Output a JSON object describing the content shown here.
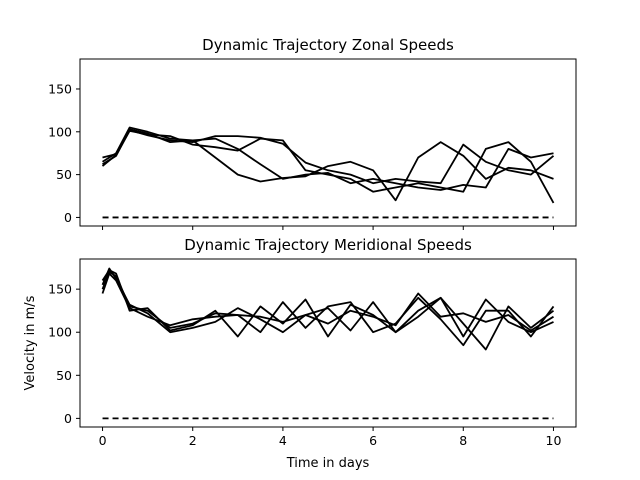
{
  "chart_data": [
    {
      "type": "line",
      "title": "Dynamic Trajectory Zonal Speeds",
      "xlabel": "",
      "ylabel": "",
      "xlim": [
        -0.5,
        10.5
      ],
      "ylim": [
        -10,
        185
      ],
      "yticks": [
        0,
        50,
        100,
        150
      ],
      "xticks": [
        0,
        2,
        4,
        6,
        8,
        10
      ],
      "show_xtick_labels": false,
      "grid": false,
      "series": [
        {
          "x": [
            0,
            0.3,
            0.6,
            1,
            1.5,
            2,
            2.5,
            3,
            3.5,
            4,
            4.5,
            5,
            5.5,
            6,
            6.5,
            7,
            7.5,
            8,
            8.5,
            9,
            9.5,
            10
          ],
          "values": [
            62,
            72,
            102,
            96,
            90,
            88,
            95,
            95,
            93,
            86,
            64,
            55,
            50,
            40,
            45,
            42,
            40,
            85,
            65,
            55,
            50,
            72
          ]
        },
        {
          "x": [
            0,
            0.3,
            0.6,
            1,
            1.5,
            2,
            2.5,
            3,
            3.5,
            4,
            4.5,
            5,
            5.5,
            6,
            6.5,
            7,
            7.5,
            8,
            8.5,
            9,
            9.5,
            10
          ],
          "values": [
            65,
            75,
            105,
            100,
            92,
            90,
            92,
            80,
            62,
            45,
            50,
            52,
            40,
            45,
            40,
            35,
            32,
            38,
            35,
            80,
            70,
            75
          ]
        },
        {
          "x": [
            0,
            0.3,
            0.6,
            1,
            1.5,
            2,
            2.5,
            3,
            3.5,
            4,
            4.5,
            5,
            5.5,
            6,
            6.5,
            7,
            7.5,
            8,
            8.5,
            9,
            9.5,
            10
          ],
          "values": [
            70,
            74,
            103,
            98,
            88,
            90,
            70,
            50,
            42,
            46,
            48,
            60,
            65,
            55,
            20,
            70,
            88,
            72,
            45,
            58,
            55,
            45
          ]
        },
        {
          "x": [
            0,
            0.3,
            0.6,
            1,
            1.5,
            2,
            2.5,
            3,
            3.5,
            4,
            4.5,
            5,
            5.5,
            6,
            6.5,
            7,
            7.5,
            8,
            8.5,
            9,
            9.5,
            10
          ],
          "values": [
            60,
            73,
            101,
            97,
            95,
            85,
            82,
            78,
            92,
            90,
            55,
            50,
            45,
            30,
            35,
            40,
            35,
            30,
            80,
            88,
            65,
            17
          ]
        }
      ],
      "baseline": 0
    },
    {
      "type": "line",
      "title": "Dynamic Trajectory Meridional Speeds",
      "xlabel": "Time in days",
      "ylabel": "Velocity in m/s",
      "xlim": [
        -0.5,
        10.5
      ],
      "ylim": [
        -10,
        185
      ],
      "yticks": [
        0,
        50,
        100,
        150
      ],
      "xticks": [
        0,
        2,
        4,
        6,
        8,
        10
      ],
      "show_xtick_labels": true,
      "grid": false,
      "series": [
        {
          "x": [
            0,
            0.15,
            0.3,
            0.6,
            1,
            1.5,
            2,
            2.5,
            3,
            3.5,
            4,
            4.5,
            5,
            5.5,
            6,
            6.5,
            7,
            7.5,
            8,
            8.5,
            9,
            9.5,
            10
          ],
          "values": [
            150,
            170,
            165,
            130,
            125,
            105,
            110,
            122,
            120,
            100,
            135,
            105,
            130,
            135,
            100,
            110,
            140,
            115,
            85,
            125,
            125,
            95,
            130
          ]
        },
        {
          "x": [
            0,
            0.15,
            0.3,
            0.6,
            1,
            1.5,
            2,
            2.5,
            3,
            3.5,
            4,
            4.5,
            5,
            5.5,
            6,
            6.5,
            7,
            7.5,
            8,
            8.5,
            9,
            9.5,
            10
          ],
          "values": [
            160,
            172,
            168,
            125,
            128,
            102,
            108,
            125,
            95,
            130,
            110,
            138,
            95,
            132,
            120,
            100,
            125,
            140,
            110,
            80,
            130,
            105,
            125
          ]
        },
        {
          "x": [
            0,
            0.15,
            0.3,
            0.6,
            1,
            1.5,
            2,
            2.5,
            3,
            3.5,
            4,
            4.5,
            5,
            5.5,
            6,
            6.5,
            7,
            7.5,
            8,
            8.5,
            9,
            9.5,
            10
          ],
          "values": [
            145,
            168,
            160,
            128,
            118,
            108,
            115,
            118,
            120,
            118,
            112,
            120,
            128,
            102,
            135,
            100,
            118,
            140,
            95,
            138,
            112,
            100,
            112
          ]
        },
        {
          "x": [
            0,
            0.15,
            0.3,
            0.6,
            1,
            1.5,
            2,
            2.5,
            3,
            3.5,
            4,
            4.5,
            5,
            5.5,
            6,
            6.5,
            7,
            7.5,
            8,
            8.5,
            9,
            9.5,
            10
          ],
          "values": [
            155,
            174,
            162,
            132,
            122,
            100,
            105,
            112,
            128,
            115,
            100,
            120,
            110,
            125,
            118,
            108,
            145,
            118,
            122,
            112,
            120,
            102,
            118
          ]
        }
      ],
      "baseline": 0
    }
  ]
}
